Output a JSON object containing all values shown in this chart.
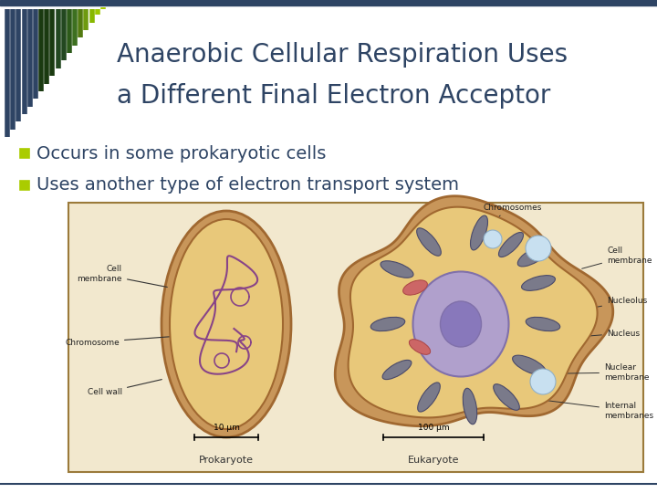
{
  "title_line1": "Anaerobic Cellular Respiration Uses",
  "title_line2": "a Different Final Electron Acceptor",
  "title_color": "#2E4464",
  "title_fontsize": 20,
  "bullet1": "Occurs in some prokaryotic cells",
  "bullet2": "Uses another type of electron transport system",
  "bullet_color": "#2E4464",
  "bullet_fontsize": 14,
  "bullet_square_color": "#AACC00",
  "background_color": "#FFFFFF",
  "header_bar_color": "#2E4464",
  "logo_colors": [
    "#2E4464",
    "#2E4464",
    "#2E4464",
    "#2E4464",
    "#2E4464",
    "#2E4464",
    "#1A3A10",
    "#1A3A10",
    "#1A3A10",
    "#234820",
    "#234820",
    "#2D5A1A",
    "#3D7020",
    "#527A10",
    "#6E9A10",
    "#88B800",
    "#9EC800",
    "#AACC00"
  ],
  "bottom_line_color": "#2E4464",
  "img_bg": "#F2E8CE",
  "img_border": "#9B7A3A",
  "cell_outer_color": "#C8965A",
  "cell_inner_color": "#E8C87A",
  "cell_edge_color": "#A06830",
  "nucleus_color": "#B0A0CC",
  "nucleus_edge": "#8070AA",
  "nucleolus_color": "#8878BB",
  "mito_color": "#7A7A8A",
  "mito_edge": "#4A4A6A",
  "chromosome_color": "#884488",
  "vacuole_color": "#C8E0F0",
  "label_fontsize": 6.5
}
